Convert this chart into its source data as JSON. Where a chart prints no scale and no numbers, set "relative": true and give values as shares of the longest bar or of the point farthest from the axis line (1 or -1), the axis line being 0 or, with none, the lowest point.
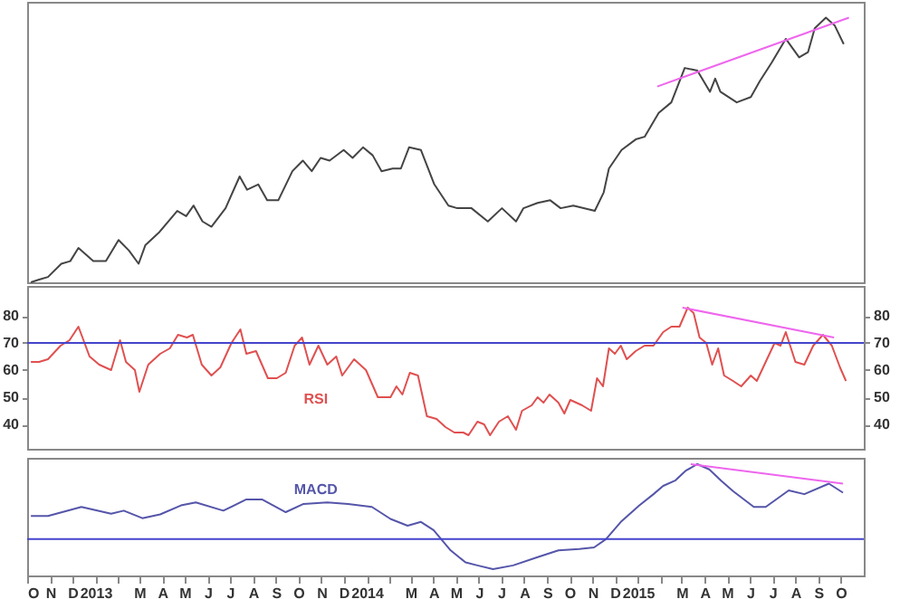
{
  "chart_data": [
    {
      "type": "line",
      "relative": true,
      "tick_labels": false,
      "xlim": [
        "2012-10-01",
        "2015-11-01"
      ],
      "series": [
        {
          "color": "#444444",
          "x": [
            "2012-10-06",
            "2012-10-17",
            "2012-10-29",
            "2012-11-16",
            "2012-11-28",
            "2012-12-09",
            "2012-12-29",
            "2013-01-15",
            "2013-02-01",
            "2013-02-15",
            "2013-02-28",
            "2013-03-09",
            "2013-03-28",
            "2013-04-21",
            "2013-05-03",
            "2013-05-13",
            "2013-05-25",
            "2013-06-06",
            "2013-06-25",
            "2013-07-14",
            "2013-07-24",
            "2013-08-08",
            "2013-08-20",
            "2013-09-04",
            "2013-09-23",
            "2013-10-07",
            "2013-10-19",
            "2013-10-31",
            "2013-11-12",
            "2013-12-01",
            "2013-12-13",
            "2013-12-27",
            "2014-01-09",
            "2014-01-21",
            "2014-02-05",
            "2014-02-16",
            "2014-02-27",
            "2014-03-15",
            "2014-04-02",
            "2014-04-21",
            "2014-05-03",
            "2014-05-22",
            "2014-06-13",
            "2014-07-02",
            "2014-07-21",
            "2014-07-31",
            "2014-08-19",
            "2014-09-05",
            "2014-09-19",
            "2014-10-06",
            "2014-11-04",
            "2014-11-16",
            "2014-11-23",
            "2014-12-10",
            "2014-12-29",
            "2015-01-10",
            "2015-01-29",
            "2015-02-15",
            "2015-03-05",
            "2015-03-22",
            "2015-04-08",
            "2015-04-15",
            "2015-04-22",
            "2015-05-14",
            "2015-06-02",
            "2015-06-14",
            "2015-06-30",
            "2015-07-19",
            "2015-08-06",
            "2015-08-18",
            "2015-08-27",
            "2015-09-11",
            "2015-09-23",
            "2015-10-05"
          ],
          "values": [
            0,
            0.01,
            0.02,
            0.07,
            0.08,
            0.13,
            0.08,
            0.08,
            0.16,
            0.12,
            0.07,
            0.14,
            0.19,
            0.27,
            0.25,
            0.29,
            0.23,
            0.21,
            0.28,
            0.4,
            0.35,
            0.37,
            0.31,
            0.31,
            0.42,
            0.46,
            0.42,
            0.47,
            0.46,
            0.5,
            0.47,
            0.51,
            0.48,
            0.42,
            0.43,
            0.43,
            0.51,
            0.5,
            0.37,
            0.29,
            0.28,
            0.28,
            0.23,
            0.28,
            0.23,
            0.28,
            0.3,
            0.31,
            0.28,
            0.29,
            0.27,
            0.34,
            0.43,
            0.5,
            0.54,
            0.55,
            0.64,
            0.68,
            0.81,
            0.8,
            0.72,
            0.77,
            0.72,
            0.68,
            0.7,
            0.76,
            0.83,
            0.92,
            0.85,
            0.87,
            0.96,
            1,
            0.97,
            0.9
          ]
        },
        {
          "type": "line",
          "color": "#ee66ee",
          "x": [
            "2015-01-27",
            "2015-10-12"
          ],
          "values": [
            0.74,
            1
          ]
        }
      ]
    },
    {
      "type": "line",
      "tick_labels": "y",
      "xlim": [
        "2012-10-01",
        "2015-11-01"
      ],
      "ylim": [
        31,
        91
      ],
      "yticks": [
        40,
        50,
        60,
        70,
        80
      ],
      "y2lim": [
        31,
        91
      ],
      "y2ticks": [
        40,
        50,
        60,
        70,
        80
      ],
      "ref_lines": [
        {
          "axis": "y",
          "value": 70,
          "color": "#4444cc"
        }
      ],
      "series": [
        {
          "name": "RSI",
          "color": "#e05050",
          "x": [
            "2012-10-06",
            "2012-10-17",
            "2012-10-29",
            "2012-11-15",
            "2012-11-27",
            "2012-12-09",
            "2012-12-24",
            "2013-01-06",
            "2013-01-22",
            "2013-02-03",
            "2013-02-11",
            "2013-02-23",
            "2013-03-01",
            "2013-03-13",
            "2013-03-29",
            "2013-04-11",
            "2013-04-22",
            "2013-05-04",
            "2013-05-12",
            "2013-05-24",
            "2013-06-06",
            "2013-06-18",
            "2013-07-03",
            "2013-07-15",
            "2013-07-23",
            "2013-08-05",
            "2013-08-21",
            "2013-09-02",
            "2013-09-14",
            "2013-09-26",
            "2013-10-06",
            "2013-10-16",
            "2013-10-28",
            "2013-11-09",
            "2013-11-21",
            "2013-11-29",
            "2013-12-15",
            "2013-12-31",
            "2014-01-16",
            "2014-02-02",
            "2014-02-10",
            "2014-02-18",
            "2014-02-28",
            "2014-03-11",
            "2014-03-23",
            "2014-04-05",
            "2014-04-17",
            "2014-04-29",
            "2014-05-11",
            "2014-05-18",
            "2014-05-30",
            "2014-06-08",
            "2014-06-16",
            "2014-06-28",
            "2014-07-10",
            "2014-07-21",
            "2014-07-29",
            "2014-08-11",
            "2014-08-19",
            "2014-08-27",
            "2014-09-04",
            "2014-09-16",
            "2014-09-24",
            "2014-10-02",
            "2014-10-18",
            "2014-10-30",
            "2014-11-07",
            "2014-11-15",
            "2014-11-23",
            "2014-12-01",
            "2014-12-09",
            "2014-12-17",
            "2014-12-29",
            "2015-01-10",
            "2015-01-22",
            "2015-02-04",
            "2015-02-15",
            "2015-02-26",
            "2015-03-09",
            "2015-03-17",
            "2015-03-25",
            "2015-04-03",
            "2015-04-11",
            "2015-04-19",
            "2015-04-27",
            "2015-05-09",
            "2015-05-20",
            "2015-06-02",
            "2015-06-10",
            "2015-06-22",
            "2015-07-04",
            "2015-07-12",
            "2015-07-19",
            "2015-08-01",
            "2015-08-13",
            "2015-08-25",
            "2015-09-07",
            "2015-09-19",
            "2015-09-30",
            "2015-10-08"
          ],
          "values": [
            63,
            63,
            64,
            69,
            71,
            76,
            65,
            62,
            60,
            71,
            63,
            60,
            52,
            62,
            66,
            68,
            73,
            72,
            73,
            62,
            58,
            61,
            70,
            75,
            66,
            67,
            57,
            57,
            59,
            69,
            72,
            62,
            69,
            62,
            65,
            58,
            64,
            60,
            50,
            50,
            54,
            51,
            59,
            58,
            43,
            42,
            39,
            37,
            37,
            36,
            41,
            40,
            36,
            41,
            43,
            38,
            45,
            47,
            50,
            48,
            51,
            48,
            44,
            49,
            47,
            45,
            57,
            54,
            68,
            66,
            69,
            64,
            67,
            69,
            69,
            74,
            76,
            76,
            83,
            81,
            72,
            70,
            62,
            68,
            58,
            56,
            54,
            58,
            56,
            63,
            70,
            69,
            74,
            63,
            62,
            69,
            73,
            69,
            61,
            56
          ]
        },
        {
          "type": "line",
          "color": "#ee66ee",
          "x": [
            "2015-03-02",
            "2015-09-22"
          ],
          "values": [
            83,
            72
          ]
        }
      ]
    },
    {
      "type": "line",
      "relative": true,
      "tick_labels": "x",
      "xlim": [
        "2012-10-01",
        "2015-11-01"
      ],
      "xticks": [
        {
          "value": "2012-10-01",
          "label": "O"
        },
        {
          "value": "2012-11-01",
          "label": "N"
        },
        {
          "value": "2012-12-01",
          "label": "D"
        },
        {
          "value": "2013-01-01",
          "label": "2013"
        },
        {
          "value": "2013-02-01",
          "label": null
        },
        {
          "value": "2013-03-01",
          "label": "M"
        },
        {
          "value": "2013-04-01",
          "label": "A"
        },
        {
          "value": "2013-05-01",
          "label": "M"
        },
        {
          "value": "2013-06-01",
          "label": "J"
        },
        {
          "value": "2013-07-01",
          "label": "J"
        },
        {
          "value": "2013-08-01",
          "label": "A"
        },
        {
          "value": "2013-09-01",
          "label": "S"
        },
        {
          "value": "2013-10-01",
          "label": "O"
        },
        {
          "value": "2013-11-01",
          "label": "N"
        },
        {
          "value": "2013-12-01",
          "label": "D"
        },
        {
          "value": "2014-01-01",
          "label": "2014"
        },
        {
          "value": "2014-02-01",
          "label": null
        },
        {
          "value": "2014-03-01",
          "label": "M"
        },
        {
          "value": "2014-04-01",
          "label": "A"
        },
        {
          "value": "2014-05-01",
          "label": "M"
        },
        {
          "value": "2014-06-01",
          "label": "J"
        },
        {
          "value": "2014-07-01",
          "label": "J"
        },
        {
          "value": "2014-08-01",
          "label": "A"
        },
        {
          "value": "2014-09-01",
          "label": "S"
        },
        {
          "value": "2014-10-01",
          "label": "O"
        },
        {
          "value": "2014-11-01",
          "label": "N"
        },
        {
          "value": "2014-12-01",
          "label": "D"
        },
        {
          "value": "2015-01-01",
          "label": "2015"
        },
        {
          "value": "2015-02-01",
          "label": null
        },
        {
          "value": "2015-03-01",
          "label": "M"
        },
        {
          "value": "2015-04-01",
          "label": "A"
        },
        {
          "value": "2015-05-01",
          "label": "M"
        },
        {
          "value": "2015-06-01",
          "label": "J"
        },
        {
          "value": "2015-07-01",
          "label": "J"
        },
        {
          "value": "2015-08-01",
          "label": "A"
        },
        {
          "value": "2015-09-01",
          "label": "S"
        },
        {
          "value": "2015-10-01",
          "label": "O"
        }
      ],
      "ref_lines": [
        {
          "axis": "y",
          "value": 0,
          "color": "#4444cc"
        }
      ],
      "series": [
        {
          "name": "MACD",
          "color": "#5555aa",
          "x": [
            "2012-10-06",
            "2012-10-29",
            "2012-12-13",
            "2013-01-22",
            "2013-02-08",
            "2013-03-05",
            "2013-03-29",
            "2013-04-26",
            "2013-05-16",
            "2013-06-22",
            "2013-07-23",
            "2013-08-13",
            "2013-09-14",
            "2013-10-08",
            "2013-11-09",
            "2013-12-07",
            "2014-01-08",
            "2014-02-02",
            "2014-02-25",
            "2014-03-15",
            "2014-04-01",
            "2014-04-24",
            "2014-05-14",
            "2014-05-30",
            "2014-06-20",
            "2014-07-17",
            "2014-08-19",
            "2014-09-16",
            "2014-10-14",
            "2014-11-03",
            "2014-11-19",
            "2014-12-09",
            "2015-01-03",
            "2015-01-22",
            "2015-02-04",
            "2015-02-20",
            "2015-03-06",
            "2015-03-22",
            "2015-04-07",
            "2015-04-23",
            "2015-05-09",
            "2015-06-06",
            "2015-06-22",
            "2015-07-23",
            "2015-08-13",
            "2015-09-15",
            "2015-10-04"
          ],
          "values": [
            0.31,
            0.31,
            0.43,
            0.34,
            0.38,
            0.28,
            0.33,
            0.45,
            0.49,
            0.38,
            0.53,
            0.53,
            0.36,
            0.47,
            0.49,
            0.47,
            0.43,
            0.27,
            0.18,
            0.23,
            0.12,
            -0.15,
            -0.31,
            -0.35,
            -0.4,
            -0.35,
            -0.24,
            -0.15,
            -0.13,
            -0.11,
            0,
            0.23,
            0.45,
            0.6,
            0.71,
            0.78,
            0.91,
            1,
            0.93,
            0.78,
            0.64,
            0.43,
            0.43,
            0.65,
            0.6,
            0.74,
            0.62
          ]
        },
        {
          "type": "line",
          "color": "#ee66ee",
          "x": [
            "2015-03-13",
            "2015-10-04"
          ],
          "values": [
            1,
            0.74
          ]
        }
      ]
    }
  ]
}
